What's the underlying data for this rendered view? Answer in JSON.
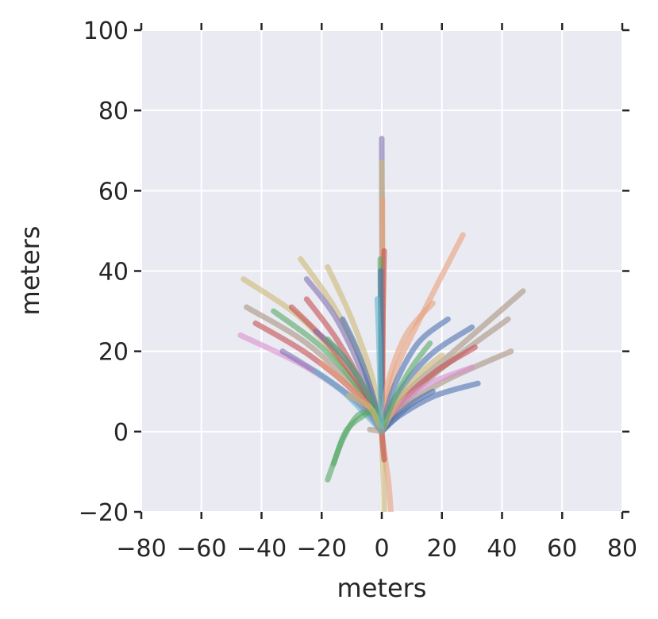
{
  "chart_data": {
    "type": "line",
    "title": "",
    "xlabel": "meters",
    "ylabel": "meters",
    "xlim": [
      -80,
      80
    ],
    "ylim": [
      -20,
      100
    ],
    "xticks": [
      -80,
      -60,
      -40,
      -20,
      0,
      20,
      40,
      60,
      80
    ],
    "yticks": [
      -20,
      0,
      20,
      40,
      60,
      80,
      100
    ],
    "grid": true,
    "background_color": "#eaeaf2",
    "palette": [
      "#4c72b0",
      "#55a868",
      "#c44e52",
      "#8172b2",
      "#ccb974",
      "#64b5cd",
      "#e8a07c",
      "#d98fcf",
      "#a9927f",
      "#9b8bc4"
    ],
    "series": [
      {
        "color": "#8172b2",
        "points": [
          [
            0,
            0
          ],
          [
            0.2,
            20
          ],
          [
            0.1,
            45
          ],
          [
            0,
            73
          ]
        ]
      },
      {
        "color": "#ccb974",
        "points": [
          [
            0,
            0
          ],
          [
            0.2,
            25
          ],
          [
            0.1,
            50
          ],
          [
            0,
            67
          ]
        ]
      },
      {
        "color": "#e8a07c",
        "points": [
          [
            0,
            0
          ],
          [
            0.3,
            15
          ],
          [
            0.3,
            35
          ],
          [
            0.2,
            58
          ]
        ]
      },
      {
        "color": "#c44e52",
        "points": [
          [
            0,
            0
          ],
          [
            0.2,
            15
          ],
          [
            0.4,
            30
          ],
          [
            0.8,
            45
          ]
        ]
      },
      {
        "color": "#55a868",
        "points": [
          [
            0,
            0
          ],
          [
            -0.3,
            15
          ],
          [
            -0.4,
            30
          ],
          [
            -0.5,
            43
          ]
        ]
      },
      {
        "color": "#4c72b0",
        "points": [
          [
            0,
            0
          ],
          [
            -0.1,
            10
          ],
          [
            -0.2,
            25
          ],
          [
            -0.4,
            40
          ]
        ]
      },
      {
        "color": "#e8a07c",
        "points": [
          [
            0,
            0
          ],
          [
            4,
            14
          ],
          [
            14,
            30
          ],
          [
            27,
            49
          ]
        ]
      },
      {
        "color": "#e8a07c",
        "points": [
          [
            0,
            0
          ],
          [
            2,
            12
          ],
          [
            8,
            24
          ],
          [
            17,
            32
          ]
        ]
      },
      {
        "color": "#4c72b0",
        "points": [
          [
            0,
            0
          ],
          [
            4,
            11
          ],
          [
            12,
            22
          ],
          [
            22,
            28
          ]
        ]
      },
      {
        "color": "#4c72b0",
        "points": [
          [
            0,
            0
          ],
          [
            5,
            9
          ],
          [
            16,
            19
          ],
          [
            30,
            26
          ]
        ]
      },
      {
        "color": "#a9927f",
        "points": [
          [
            0,
            0
          ],
          [
            7,
            9
          ],
          [
            24,
            20
          ],
          [
            47,
            35
          ]
        ]
      },
      {
        "color": "#a9927f",
        "points": [
          [
            0,
            0
          ],
          [
            7,
            7
          ],
          [
            22,
            17
          ],
          [
            42,
            28
          ]
        ]
      },
      {
        "color": "#a9927f",
        "points": [
          [
            0,
            0
          ],
          [
            7,
            6
          ],
          [
            22,
            13
          ],
          [
            43,
            20
          ]
        ]
      },
      {
        "color": "#c44e52",
        "points": [
          [
            0,
            0
          ],
          [
            6,
            7
          ],
          [
            18,
            15
          ],
          [
            31,
            21
          ]
        ]
      },
      {
        "color": "#d98fcf",
        "points": [
          [
            0,
            0
          ],
          [
            5,
            6
          ],
          [
            16,
            12
          ],
          [
            30,
            16
          ]
        ]
      },
      {
        "color": "#4c72b0",
        "points": [
          [
            0,
            0
          ],
          [
            6,
            4
          ],
          [
            18,
            9
          ],
          [
            32,
            12
          ]
        ]
      },
      {
        "color": "#4c72b0",
        "points": [
          [
            0,
            0
          ],
          [
            4,
            3
          ],
          [
            10,
            7
          ],
          [
            17,
            10
          ]
        ]
      },
      {
        "color": "#ccb974",
        "points": [
          [
            0,
            0
          ],
          [
            5,
            7
          ],
          [
            12,
            14
          ],
          [
            20,
            19
          ]
        ]
      },
      {
        "color": "#55a868",
        "points": [
          [
            0,
            0
          ],
          [
            4,
            8
          ],
          [
            10,
            16
          ],
          [
            16,
            22
          ]
        ]
      },
      {
        "color": "#ccb974",
        "points": [
          [
            0,
            0
          ],
          [
            -5,
            14
          ],
          [
            -15,
            30
          ],
          [
            -27,
            43
          ]
        ]
      },
      {
        "color": "#ccb974",
        "points": [
          [
            0,
            0
          ],
          [
            -3,
            13
          ],
          [
            -10,
            28
          ],
          [
            -18,
            41
          ]
        ]
      },
      {
        "color": "#ccb974",
        "points": [
          [
            0,
            0
          ],
          [
            -8,
            11
          ],
          [
            -25,
            27
          ],
          [
            -46,
            38
          ]
        ]
      },
      {
        "color": "#8172b2",
        "points": [
          [
            0,
            0
          ],
          [
            -5,
            12
          ],
          [
            -15,
            28
          ],
          [
            -25,
            38
          ]
        ]
      },
      {
        "color": "#a9927f",
        "points": [
          [
            0,
            0
          ],
          [
            -8,
            10
          ],
          [
            -25,
            22
          ],
          [
            -45,
            31
          ]
        ]
      },
      {
        "color": "#55a868",
        "points": [
          [
            0,
            0
          ],
          [
            -7,
            10
          ],
          [
            -20,
            21
          ],
          [
            -36,
            30
          ]
        ]
      },
      {
        "color": "#c44e52",
        "points": [
          [
            0,
            0
          ],
          [
            -6,
            10
          ],
          [
            -18,
            22
          ],
          [
            -30,
            31
          ]
        ]
      },
      {
        "color": "#c44e52",
        "points": [
          [
            0,
            0
          ],
          [
            -6,
            11
          ],
          [
            -15,
            23
          ],
          [
            -25,
            33
          ]
        ]
      },
      {
        "color": "#c44e52",
        "points": [
          [
            0,
            0
          ],
          [
            -8,
            9
          ],
          [
            -24,
            19
          ],
          [
            -42,
            27
          ]
        ]
      },
      {
        "color": "#d98fcf",
        "points": [
          [
            0,
            0
          ],
          [
            -8,
            7
          ],
          [
            -25,
            16
          ],
          [
            -47,
            24
          ]
        ]
      },
      {
        "color": "#8172b2",
        "points": [
          [
            0,
            0
          ],
          [
            -6,
            6
          ],
          [
            -18,
            13
          ],
          [
            -33,
            20
          ]
        ]
      },
      {
        "color": "#64b5cd",
        "points": [
          [
            0,
            0
          ],
          [
            -5,
            4
          ],
          [
            -13,
            10
          ],
          [
            -22,
            15
          ]
        ]
      },
      {
        "color": "#8172b2",
        "points": [
          [
            0,
            0
          ],
          [
            -4,
            8
          ],
          [
            -12,
            18
          ],
          [
            -22,
            25
          ]
        ]
      },
      {
        "color": "#4c72b0",
        "points": [
          [
            0,
            0
          ],
          [
            -3,
            9
          ],
          [
            -8,
            20
          ],
          [
            -13,
            28
          ]
        ]
      },
      {
        "color": "#55a868",
        "points": [
          [
            0,
            0
          ],
          [
            -3,
            7
          ],
          [
            -10,
            16
          ],
          [
            -18,
            23
          ]
        ]
      },
      {
        "color": "#e8a07c",
        "points": [
          [
            0,
            0
          ],
          [
            -4,
            6
          ],
          [
            -12,
            12
          ],
          [
            -20,
            17
          ]
        ]
      },
      {
        "color": "#55a868",
        "points": [
          [
            0,
            0
          ],
          [
            -2,
            5
          ],
          [
            -6,
            4
          ],
          [
            -12,
            0
          ],
          [
            -16,
            -8
          ]
        ]
      },
      {
        "color": "#55a868",
        "points": [
          [
            0,
            0
          ],
          [
            -3,
            4.5
          ],
          [
            -8,
            4
          ],
          [
            -13,
            -2
          ],
          [
            -18,
            -12
          ]
        ]
      },
      {
        "color": "#ccb974",
        "points": [
          [
            0,
            0
          ],
          [
            -1,
            2
          ],
          [
            -4,
            6
          ],
          [
            -11,
            9
          ]
        ]
      },
      {
        "color": "#a9927f",
        "points": [
          [
            0,
            0
          ],
          [
            -2,
            0.3
          ],
          [
            -4,
            0.5
          ]
        ]
      },
      {
        "color": "#e8a07c",
        "points": [
          [
            0,
            0
          ],
          [
            1,
            -6
          ],
          [
            2.3,
            -13
          ],
          [
            3,
            -20
          ]
        ]
      },
      {
        "color": "#ccb974",
        "points": [
          [
            0,
            0
          ],
          [
            0.3,
            -7
          ],
          [
            0.7,
            -14
          ],
          [
            0.8,
            -20
          ]
        ]
      },
      {
        "color": "#c44e52",
        "points": [
          [
            0,
            0
          ],
          [
            0.3,
            -3
          ],
          [
            0.8,
            -7
          ]
        ]
      },
      {
        "color": "#64b5cd",
        "points": [
          [
            0,
            0
          ],
          [
            -0.5,
            10
          ],
          [
            -1,
            24
          ],
          [
            -1.5,
            33
          ]
        ]
      }
    ]
  }
}
